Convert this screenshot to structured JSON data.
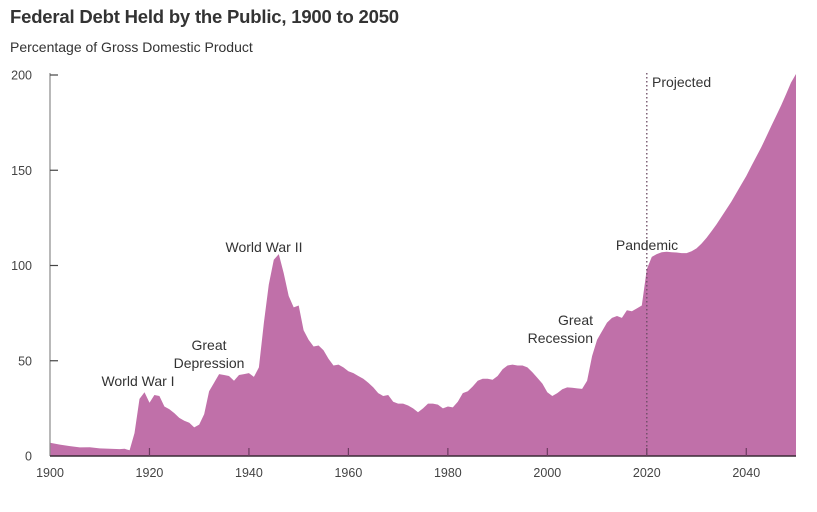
{
  "chart_data": {
    "type": "area",
    "title": "Federal Debt Held by the Public, 1900 to 2050",
    "subtitle": "Percentage of Gross Domestic Product",
    "xlabel": "",
    "ylabel": "",
    "xlim": [
      1900,
      2050
    ],
    "ylim": [
      0,
      200
    ],
    "x_ticks": [
      1900,
      1920,
      1940,
      1960,
      1980,
      2000,
      2020,
      2040
    ],
    "y_ticks": [
      0,
      50,
      100,
      150,
      200
    ],
    "grid": false,
    "color": "#c070a9",
    "projection_start": 2020,
    "series": [
      {
        "name": "Federal Debt Held by the Public",
        "points": [
          [
            1900,
            7
          ],
          [
            1902,
            6
          ],
          [
            1904,
            5.2
          ],
          [
            1906,
            4.5
          ],
          [
            1908,
            4.6
          ],
          [
            1910,
            4
          ],
          [
            1912,
            3.8
          ],
          [
            1914,
            3.6
          ],
          [
            1915,
            3.8
          ],
          [
            1916,
            3
          ],
          [
            1917,
            12
          ],
          [
            1918,
            30
          ],
          [
            1919,
            33.5
          ],
          [
            1920,
            28
          ],
          [
            1921,
            32
          ],
          [
            1922,
            31.5
          ],
          [
            1923,
            26
          ],
          [
            1924,
            24.5
          ],
          [
            1925,
            22.5
          ],
          [
            1926,
            20
          ],
          [
            1927,
            18.5
          ],
          [
            1928,
            17.5
          ],
          [
            1929,
            15
          ],
          [
            1930,
            16.5
          ],
          [
            1931,
            22
          ],
          [
            1932,
            34
          ],
          [
            1933,
            38.5
          ],
          [
            1934,
            43
          ],
          [
            1935,
            42.5
          ],
          [
            1936,
            42
          ],
          [
            1937,
            39.5
          ],
          [
            1938,
            42.5
          ],
          [
            1939,
            43
          ],
          [
            1940,
            43.5
          ],
          [
            1941,
            41.5
          ],
          [
            1942,
            46.5
          ],
          [
            1943,
            70
          ],
          [
            1944,
            90
          ],
          [
            1945,
            103
          ],
          [
            1946,
            106
          ],
          [
            1947,
            96
          ],
          [
            1948,
            84
          ],
          [
            1949,
            78
          ],
          [
            1950,
            79
          ],
          [
            1951,
            66
          ],
          [
            1952,
            61
          ],
          [
            1953,
            57.5
          ],
          [
            1954,
            58
          ],
          [
            1955,
            55.5
          ],
          [
            1956,
            51
          ],
          [
            1957,
            47.5
          ],
          [
            1958,
            48
          ],
          [
            1959,
            46.5
          ],
          [
            1960,
            44.5
          ],
          [
            1961,
            43.5
          ],
          [
            1962,
            42
          ],
          [
            1963,
            40.5
          ],
          [
            1964,
            38.5
          ],
          [
            1965,
            36
          ],
          [
            1966,
            33
          ],
          [
            1967,
            31.5
          ],
          [
            1968,
            32
          ],
          [
            1969,
            28.5
          ],
          [
            1970,
            27.5
          ],
          [
            1971,
            27.5
          ],
          [
            1972,
            26.5
          ],
          [
            1973,
            25
          ],
          [
            1974,
            23
          ],
          [
            1975,
            25
          ],
          [
            1976,
            27.5
          ],
          [
            1977,
            27.5
          ],
          [
            1978,
            27
          ],
          [
            1979,
            25
          ],
          [
            1980,
            26
          ],
          [
            1981,
            25.5
          ],
          [
            1982,
            28.5
          ],
          [
            1983,
            33
          ],
          [
            1984,
            34
          ],
          [
            1985,
            36.5
          ],
          [
            1986,
            39.5
          ],
          [
            1987,
            40.5
          ],
          [
            1988,
            40.5
          ],
          [
            1989,
            40
          ],
          [
            1990,
            42
          ],
          [
            1991,
            45.5
          ],
          [
            1992,
            47.5
          ],
          [
            1993,
            48
          ],
          [
            1994,
            47.5
          ],
          [
            1995,
            47.5
          ],
          [
            1996,
            46.5
          ],
          [
            1997,
            44
          ],
          [
            1998,
            41
          ],
          [
            1999,
            38
          ],
          [
            2000,
            33.5
          ],
          [
            2001,
            31.5
          ],
          [
            2002,
            33
          ],
          [
            2003,
            35
          ],
          [
            2004,
            36
          ],
          [
            2005,
            35.8
          ],
          [
            2006,
            35.5
          ],
          [
            2007,
            35.2
          ],
          [
            2008,
            39.5
          ],
          [
            2009,
            52.5
          ],
          [
            2010,
            61
          ],
          [
            2011,
            65.5
          ],
          [
            2012,
            70
          ],
          [
            2013,
            72.5
          ],
          [
            2014,
            73.5
          ],
          [
            2015,
            72.5
          ],
          [
            2016,
            76.5
          ],
          [
            2017,
            76
          ],
          [
            2018,
            77.5
          ],
          [
            2019,
            79
          ],
          [
            2020,
            98
          ],
          [
            2021,
            104.5
          ],
          [
            2022,
            106
          ],
          [
            2023,
            107
          ],
          [
            2024,
            107.2
          ],
          [
            2025,
            107
          ],
          [
            2026,
            106.8
          ],
          [
            2027,
            106.5
          ],
          [
            2028,
            106.5
          ],
          [
            2029,
            107.5
          ],
          [
            2030,
            109
          ],
          [
            2031,
            111.5
          ],
          [
            2032,
            114.5
          ],
          [
            2033,
            118
          ],
          [
            2034,
            121.5
          ],
          [
            2035,
            125.5
          ],
          [
            2036,
            129.5
          ],
          [
            2037,
            133.5
          ],
          [
            2038,
            138
          ],
          [
            2039,
            142.5
          ],
          [
            2040,
            147
          ],
          [
            2041,
            152
          ],
          [
            2042,
            157
          ],
          [
            2043,
            162
          ],
          [
            2044,
            167.5
          ],
          [
            2045,
            173
          ],
          [
            2046,
            178.5
          ],
          [
            2047,
            184
          ],
          [
            2048,
            190
          ],
          [
            2049,
            196
          ],
          [
            2050,
            202
          ]
        ]
      }
    ],
    "annotations": [
      {
        "text": "World War I",
        "lines": [
          "World War I"
        ],
        "x": 1918,
        "y": 38
      },
      {
        "text": "Great Depression",
        "lines": [
          "Great",
          "Depression"
        ],
        "x": 1932,
        "y": 48
      },
      {
        "text": "World War II",
        "lines": [
          "World War II"
        ],
        "x": 1943,
        "y": 107
      },
      {
        "text": "Great Recession",
        "lines": [
          "Great",
          "Recession"
        ],
        "x": 2005,
        "y": 60
      },
      {
        "text": "Pandemic",
        "lines": [
          "Pandemic"
        ],
        "x": 2020,
        "y": 108
      },
      {
        "text": "Projected",
        "lines": [
          "Projected"
        ],
        "x": 2021,
        "y": 196
      }
    ]
  }
}
